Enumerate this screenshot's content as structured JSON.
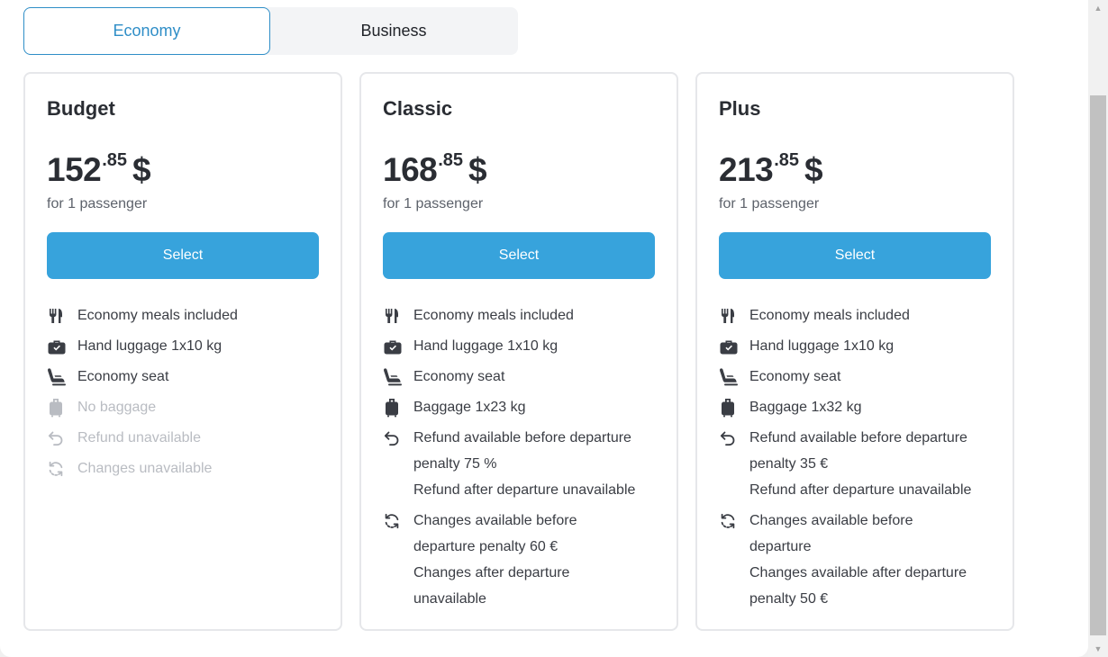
{
  "tabs": [
    {
      "label": "Economy",
      "active": true
    },
    {
      "label": "Business",
      "active": false
    }
  ],
  "cards": [
    {
      "title": "Budget",
      "price_main": "152",
      "price_cents": ".85",
      "currency": "$",
      "per": "for 1 passenger",
      "select_label": "Select",
      "features": [
        {
          "icon": "meal-icon",
          "lines": [
            "Economy meals included"
          ],
          "available": true
        },
        {
          "icon": "hand-luggage-icon",
          "lines": [
            "Hand luggage 1x10 kg"
          ],
          "available": true
        },
        {
          "icon": "seat-icon",
          "lines": [
            "Economy seat"
          ],
          "available": true
        },
        {
          "icon": "baggage-icon",
          "lines": [
            "No baggage"
          ],
          "available": false
        },
        {
          "icon": "refund-icon",
          "lines": [
            "Refund unavailable"
          ],
          "available": false
        },
        {
          "icon": "changes-icon",
          "lines": [
            "Changes unavailable"
          ],
          "available": false
        }
      ]
    },
    {
      "title": "Classic",
      "price_main": "168",
      "price_cents": ".85",
      "currency": "$",
      "per": "for 1 passenger",
      "select_label": "Select",
      "features": [
        {
          "icon": "meal-icon",
          "lines": [
            "Economy meals included"
          ],
          "available": true
        },
        {
          "icon": "hand-luggage-icon",
          "lines": [
            "Hand luggage 1x10 kg"
          ],
          "available": true
        },
        {
          "icon": "seat-icon",
          "lines": [
            "Economy seat"
          ],
          "available": true
        },
        {
          "icon": "baggage-icon",
          "lines": [
            "Baggage 1x23 kg"
          ],
          "available": true
        },
        {
          "icon": "refund-icon",
          "lines": [
            "Refund available before departure",
            "penalty 75 %",
            "Refund after departure unavailable"
          ],
          "available": true
        },
        {
          "icon": "changes-icon",
          "lines": [
            "Changes available before",
            "departure penalty 60 €",
            "Changes after departure",
            "unavailable"
          ],
          "available": true
        }
      ]
    },
    {
      "title": "Plus",
      "price_main": "213",
      "price_cents": ".85",
      "currency": "$",
      "per": "for 1 passenger",
      "select_label": "Select",
      "features": [
        {
          "icon": "meal-icon",
          "lines": [
            "Economy meals included"
          ],
          "available": true
        },
        {
          "icon": "hand-luggage-icon",
          "lines": [
            "Hand luggage 1x10 kg"
          ],
          "available": true
        },
        {
          "icon": "seat-icon",
          "lines": [
            "Economy seat"
          ],
          "available": true
        },
        {
          "icon": "baggage-icon",
          "lines": [
            "Baggage 1x32 kg"
          ],
          "available": true
        },
        {
          "icon": "refund-icon",
          "lines": [
            "Refund available before departure",
            "penalty 35 €",
            "Refund after departure unavailable"
          ],
          "available": true
        },
        {
          "icon": "changes-icon",
          "lines": [
            "Changes available before",
            "departure",
            "Changes available after departure",
            "penalty 50 €"
          ],
          "available": true
        }
      ]
    }
  ],
  "colors": {
    "accent": "#37a3dc",
    "tab_active": "#2f8ec7",
    "disabled_text": "#b9bcc2"
  }
}
